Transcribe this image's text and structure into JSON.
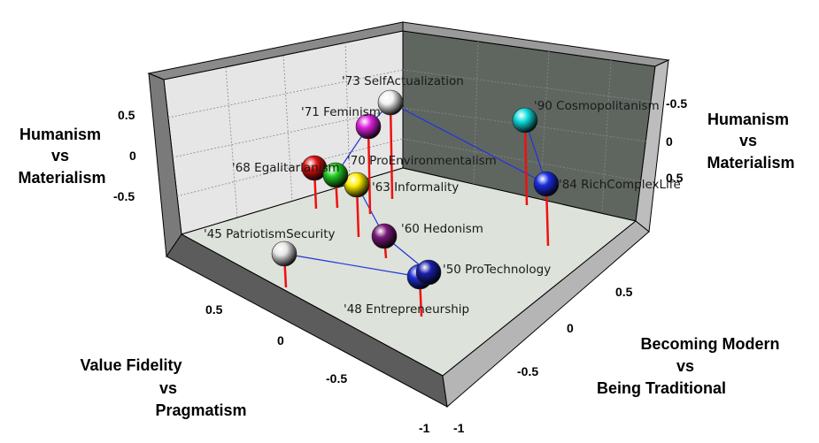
{
  "chart_data": {
    "type": "scatter3d",
    "title": "",
    "axes": {
      "vertical": {
        "label_left": [
          "Humanism",
          "vs",
          "Materialism"
        ],
        "label_right": [
          "Humanism",
          "vs",
          "Materialism"
        ],
        "ticks_left": [
          "0.5",
          "0",
          "-0.5"
        ],
        "ticks_right": [
          "-0.5",
          "0",
          "0.5"
        ]
      },
      "depth_left": {
        "label": [
          "Value Fidelity",
          "vs",
          "Pragmatism"
        ],
        "ticks": [
          "0.5",
          "0",
          "-0.5",
          "-1"
        ]
      },
      "depth_right": {
        "label": [
          "Becoming Modern",
          "vs",
          "Being Traditional"
        ],
        "ticks": [
          "0.5",
          "0",
          "-0.5",
          "-1"
        ]
      }
    },
    "points": [
      {
        "label": "'45 PatriotismSecurity",
        "color": "#e6e6e6"
      },
      {
        "label": "'48 Entrepreneurship",
        "color": "#1e2fd6"
      },
      {
        "label": "'50 ProTechnology",
        "color": "#1a1fa8"
      },
      {
        "label": "'60 Hedonism",
        "color": "#7a1a7a"
      },
      {
        "label": "'63 Informality",
        "color": "#ffee00"
      },
      {
        "label": "'68 Egalitarianism",
        "color": "#e01010"
      },
      {
        "label": "'70 ProEnvironmentalism",
        "color": "#22cc22"
      },
      {
        "label": "'71 Feminism",
        "color": "#dd22dd"
      },
      {
        "label": "'73 SelfActualization",
        "color": "#f2f2f2"
      },
      {
        "label": "'84 RichComplexLife",
        "color": "#1a2ee0"
      },
      {
        "label": "'90 Cosmopolitanism",
        "color": "#11dddd"
      }
    ],
    "connections": [
      [
        0,
        1
      ],
      [
        1,
        2
      ],
      [
        2,
        3
      ],
      [
        3,
        4
      ],
      [
        4,
        5
      ],
      [
        5,
        6
      ],
      [
        6,
        7
      ],
      [
        7,
        8
      ],
      [
        8,
        9
      ],
      [
        9,
        10
      ]
    ],
    "grid": true
  }
}
